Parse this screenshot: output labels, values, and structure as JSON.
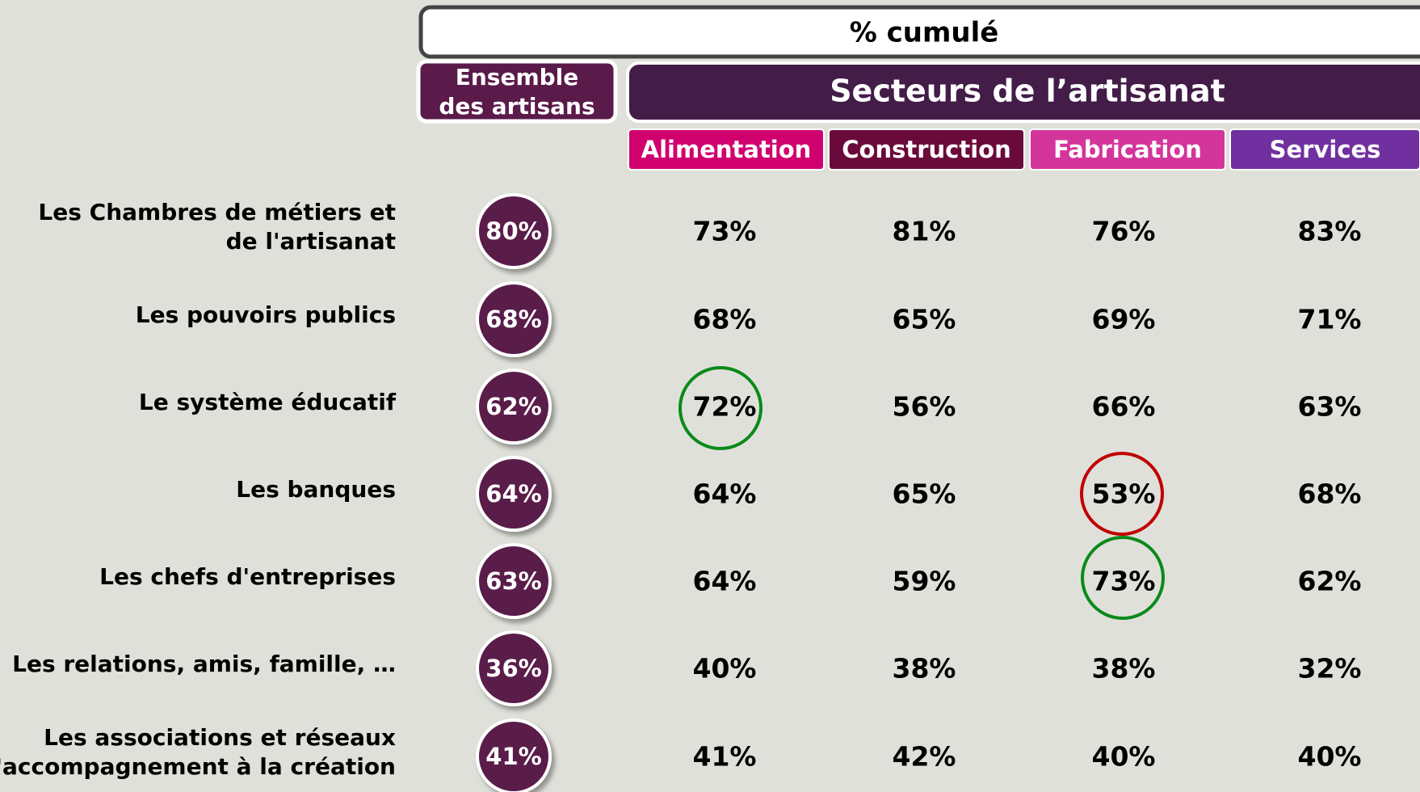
{
  "header": {
    "title": "% cumulé",
    "overall": [
      "Ensemble",
      "des artisans"
    ],
    "sectors": "Secteurs de l’artisanat",
    "columns": [
      "Alimentation",
      "Construction",
      "Fabrication",
      "Services"
    ]
  },
  "table": {
    "rows": [
      {
        "label": [
          "Les Chambres de métiers et",
          "de l'artisanat"
        ],
        "overall": "80%",
        "values": [
          "73%",
          "81%",
          "76%",
          "83%"
        ]
      },
      {
        "label": [
          "Les pouvoirs publics"
        ],
        "overall": "68%",
        "values": [
          "68%",
          "65%",
          "69%",
          "71%"
        ]
      },
      {
        "label": [
          "Le système éducatif"
        ],
        "overall": "62%",
        "values": [
          "72%",
          "56%",
          "66%",
          "63%"
        ]
      },
      {
        "label": [
          "Les banques"
        ],
        "overall": "64%",
        "values": [
          "64%",
          "65%",
          "53%",
          "68%"
        ]
      },
      {
        "label": [
          "Les chefs d'entreprises"
        ],
        "overall": "63%",
        "values": [
          "64%",
          "59%",
          "73%",
          "62%"
        ]
      },
      {
        "label": [
          "Les relations, amis, famille, …"
        ],
        "overall": "36%",
        "values": [
          "40%",
          "38%",
          "38%",
          "32%"
        ]
      },
      {
        "label": [
          "Les associations et réseaux",
          "d'accompagnement à la création"
        ],
        "overall": "41%",
        "values": [
          "41%",
          "42%",
          "40%",
          "40%"
        ]
      }
    ]
  }
}
